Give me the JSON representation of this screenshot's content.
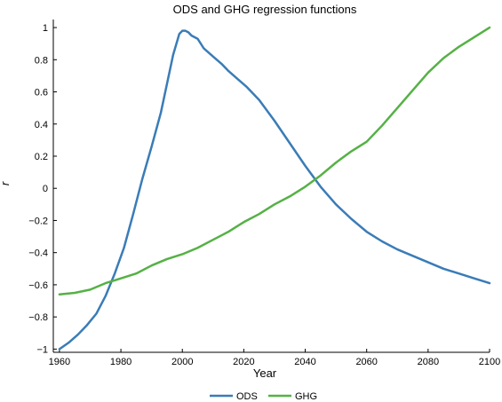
{
  "chart_data": {
    "type": "line",
    "title": "ODS and GHG regression functions",
    "xlabel": "Year",
    "ylabel": "r",
    "xlim": [
      1958,
      2100
    ],
    "ylim": [
      -1.02,
      1.05
    ],
    "xticks": [
      1960,
      1980,
      2000,
      2020,
      2040,
      2060,
      2080,
      2100
    ],
    "yticks": [
      -1,
      -0.8,
      -0.6,
      -0.4,
      -0.2,
      0,
      0.2,
      0.4,
      0.6,
      0.8,
      1
    ],
    "ytick_labels": [
      "−1",
      "−0.8",
      "−0.6",
      "−0.4",
      "−0.2",
      "0",
      "0.2",
      "0.4",
      "0.6",
      "0.8",
      "1"
    ],
    "grid": false,
    "legend_position": "bottom",
    "series": [
      {
        "name": "ODS",
        "color": "#3a7cb7",
        "x": [
          1960,
          1963,
          1966,
          1969,
          1972,
          1975,
          1978,
          1981,
          1984,
          1987,
          1990,
          1993,
          1995,
          1997,
          1999,
          2000,
          2001,
          2002,
          2003,
          2005,
          2007,
          2010,
          2013,
          2015,
          2018,
          2021,
          2025,
          2030,
          2035,
          2040,
          2045,
          2050,
          2055,
          2060,
          2065,
          2070,
          2075,
          2080,
          2085,
          2090,
          2095,
          2100
        ],
        "y": [
          -1.0,
          -0.96,
          -0.91,
          -0.85,
          -0.78,
          -0.67,
          -0.53,
          -0.37,
          -0.16,
          0.06,
          0.26,
          0.47,
          0.65,
          0.83,
          0.96,
          0.98,
          0.98,
          0.97,
          0.95,
          0.93,
          0.87,
          0.82,
          0.77,
          0.73,
          0.68,
          0.63,
          0.55,
          0.42,
          0.28,
          0.14,
          0.01,
          -0.1,
          -0.19,
          -0.27,
          -0.33,
          -0.38,
          -0.42,
          -0.46,
          -0.5,
          -0.53,
          -0.56,
          -0.59
        ]
      },
      {
        "name": "GHG",
        "color": "#55b145",
        "x": [
          1960,
          1965,
          1970,
          1975,
          1980,
          1985,
          1990,
          1995,
          2000,
          2005,
          2010,
          2015,
          2020,
          2025,
          2030,
          2035,
          2040,
          2045,
          2050,
          2055,
          2060,
          2065,
          2070,
          2075,
          2080,
          2085,
          2090,
          2095,
          2100
        ],
        "y": [
          -0.66,
          -0.65,
          -0.63,
          -0.59,
          -0.56,
          -0.53,
          -0.48,
          -0.44,
          -0.41,
          -0.37,
          -0.32,
          -0.27,
          -0.21,
          -0.16,
          -0.1,
          -0.05,
          0.01,
          0.08,
          0.16,
          0.23,
          0.29,
          0.39,
          0.5,
          0.61,
          0.72,
          0.81,
          0.88,
          0.94,
          1.0
        ]
      }
    ]
  }
}
